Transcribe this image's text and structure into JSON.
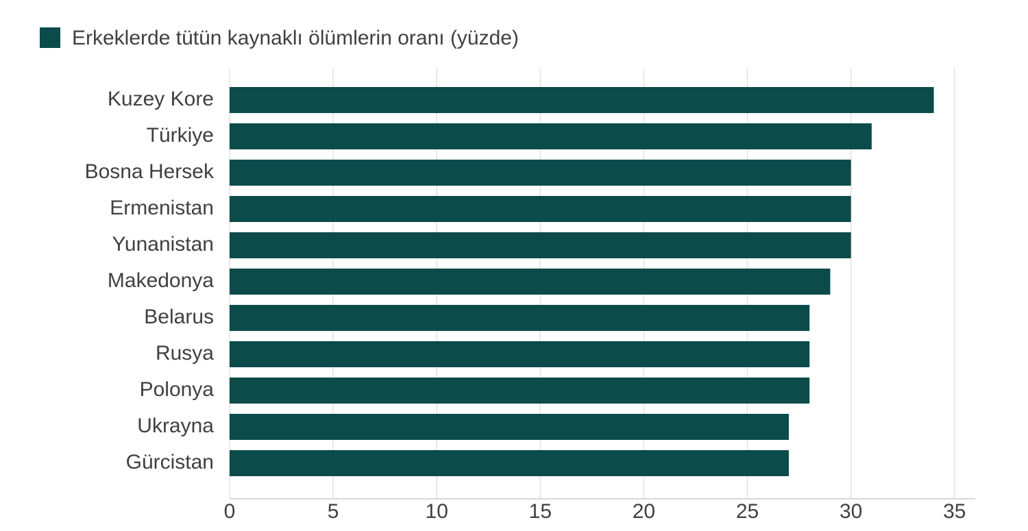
{
  "chart_data": {
    "type": "barh",
    "categories": [
      "Kuzey Kore",
      "Türkiye",
      "Bosna Hersek",
      "Ermenistan",
      "Yunanistan",
      "Makedonya",
      "Belarus",
      "Rusya",
      "Polonya",
      "Ukrayna",
      "Gürcistan"
    ],
    "series": [
      {
        "name": "Erkeklerde tütün kaynaklı ölümlerin oranı (yüzde)",
        "color": "#0b4b4a",
        "values": [
          34,
          31,
          30,
          30,
          30,
          29,
          28,
          28,
          28,
          27,
          27
        ]
      }
    ],
    "xlim": [
      0,
      36
    ],
    "xticks": [
      0,
      5,
      10,
      15,
      20,
      25,
      30,
      35
    ],
    "grid": true,
    "legend": "top-left"
  }
}
